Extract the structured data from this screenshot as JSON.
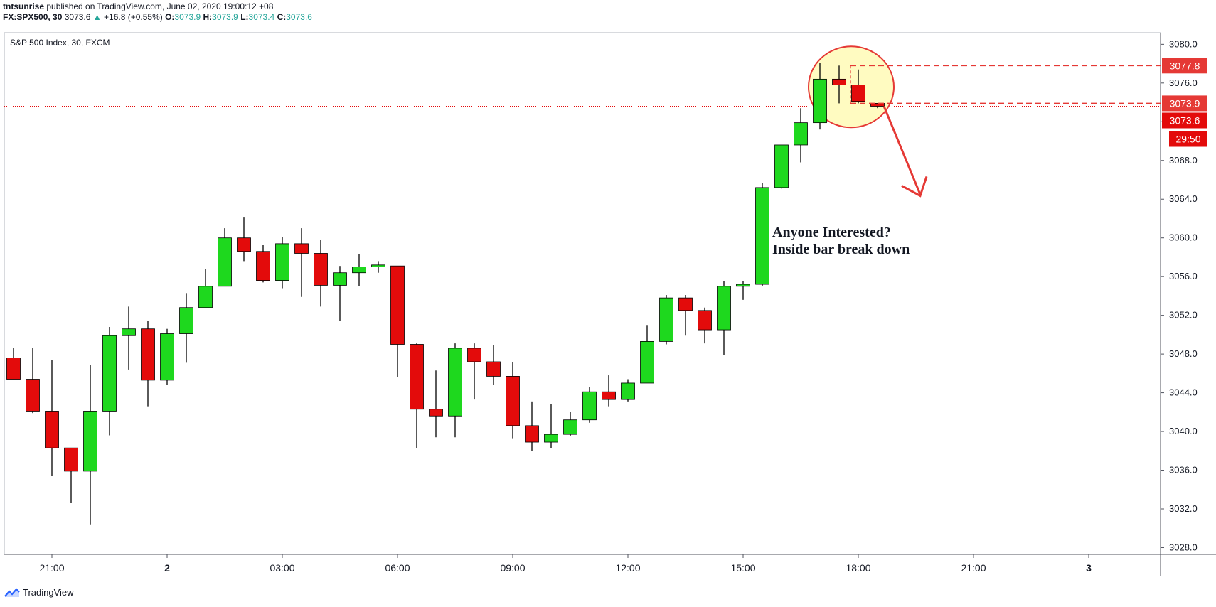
{
  "header": {
    "author": "tntsunrise",
    "published": " published on TradingView.com, June 02, 2020 19:00:12 +08",
    "symbol": "FX:SPX500, 30",
    "last": "3073.6",
    "change_arrow": "▲",
    "change": "+16.8 (+0.55%)",
    "o_label": "O:",
    "o": "3073.9",
    "h_label": "H:",
    "h": "3073.9",
    "l_label": "L:",
    "l": "3073.4",
    "c_label": "C:",
    "c": "3073.6"
  },
  "footer": {
    "brand": "TradingView"
  },
  "colors": {
    "up": "#1ed81e",
    "down": "#e30b0b",
    "accent": "#e53935",
    "highlight": "#fffbc1"
  },
  "chart_data": {
    "type": "candlestick",
    "title": "S&P 500 Index, 30, FXCM",
    "ylim": [
      3027.3,
      3081.2
    ],
    "yticks": [
      3028,
      3032,
      3036,
      3040,
      3044,
      3048,
      3052,
      3056,
      3060,
      3064,
      3068,
      3072,
      3076,
      3080
    ],
    "xticks": [
      {
        "label": "21:00",
        "bar": 2
      },
      {
        "label": "2",
        "bar": 8
      },
      {
        "label": "03:00",
        "bar": 14
      },
      {
        "label": "06:00",
        "bar": 20
      },
      {
        "label": "09:00",
        "bar": 26
      },
      {
        "label": "12:00",
        "bar": 32
      },
      {
        "label": "15:00",
        "bar": 38
      },
      {
        "label": "18:00",
        "bar": 44
      },
      {
        "label": "21:00",
        "bar": 50
      },
      {
        "label": "3",
        "bar": 56
      }
    ],
    "candles": [
      {
        "o": 3047.6,
        "h": 3048.6,
        "l": 3045.4,
        "c": 3045.4
      },
      {
        "o": 3045.4,
        "h": 3048.6,
        "l": 3041.9,
        "c": 3042.1
      },
      {
        "o": 3042.1,
        "h": 3047.4,
        "l": 3035.4,
        "c": 3038.3
      },
      {
        "o": 3038.3,
        "h": 3038.3,
        "l": 3032.6,
        "c": 3035.9
      },
      {
        "o": 3035.9,
        "h": 3046.9,
        "l": 3030.4,
        "c": 3042.1
      },
      {
        "o": 3042.1,
        "h": 3050.8,
        "l": 3039.6,
        "c": 3049.9
      },
      {
        "o": 3049.9,
        "h": 3052.9,
        "l": 3046.4,
        "c": 3050.6
      },
      {
        "o": 3050.6,
        "h": 3051.4,
        "l": 3042.6,
        "c": 3045.3
      },
      {
        "o": 3045.3,
        "h": 3050.6,
        "l": 3044.8,
        "c": 3050.1
      },
      {
        "o": 3050.1,
        "h": 3054.3,
        "l": 3047.1,
        "c": 3052.8
      },
      {
        "o": 3052.8,
        "h": 3056.8,
        "l": 3052.8,
        "c": 3055.0
      },
      {
        "o": 3055.0,
        "h": 3061.0,
        "l": 3055.0,
        "c": 3060.0
      },
      {
        "o": 3060.0,
        "h": 3062.1,
        "l": 3057.6,
        "c": 3058.6
      },
      {
        "o": 3058.6,
        "h": 3059.3,
        "l": 3055.4,
        "c": 3055.6
      },
      {
        "o": 3055.6,
        "h": 3060.1,
        "l": 3054.8,
        "c": 3059.4
      },
      {
        "o": 3059.4,
        "h": 3061.0,
        "l": 3053.9,
        "c": 3058.4
      },
      {
        "o": 3058.4,
        "h": 3059.8,
        "l": 3052.9,
        "c": 3055.1
      },
      {
        "o": 3055.1,
        "h": 3057.1,
        "l": 3051.4,
        "c": 3056.4
      },
      {
        "o": 3056.4,
        "h": 3058.3,
        "l": 3055.0,
        "c": 3057.0
      },
      {
        "o": 3057.0,
        "h": 3057.6,
        "l": 3056.4,
        "c": 3057.2
      },
      {
        "o": 3057.1,
        "h": 3057.1,
        "l": 3045.6,
        "c": 3049.0
      },
      {
        "o": 3049.0,
        "h": 3049.1,
        "l": 3038.3,
        "c": 3042.3
      },
      {
        "o": 3042.3,
        "h": 3046.3,
        "l": 3039.4,
        "c": 3041.6
      },
      {
        "o": 3041.6,
        "h": 3049.1,
        "l": 3039.4,
        "c": 3048.6
      },
      {
        "o": 3048.6,
        "h": 3049.1,
        "l": 3043.3,
        "c": 3047.2
      },
      {
        "o": 3047.2,
        "h": 3048.9,
        "l": 3044.8,
        "c": 3045.7
      },
      {
        "o": 3045.7,
        "h": 3047.2,
        "l": 3039.3,
        "c": 3040.6
      },
      {
        "o": 3040.6,
        "h": 3043.1,
        "l": 3038.0,
        "c": 3038.9
      },
      {
        "o": 3038.9,
        "h": 3042.8,
        "l": 3038.3,
        "c": 3039.7
      },
      {
        "o": 3039.7,
        "h": 3042.0,
        "l": 3039.5,
        "c": 3041.2
      },
      {
        "o": 3041.2,
        "h": 3044.6,
        "l": 3040.9,
        "c": 3044.1
      },
      {
        "o": 3044.1,
        "h": 3045.8,
        "l": 3042.6,
        "c": 3043.3
      },
      {
        "o": 3043.3,
        "h": 3045.4,
        "l": 3043.1,
        "c": 3045.0
      },
      {
        "o": 3045.0,
        "h": 3051.0,
        "l": 3045.0,
        "c": 3049.3
      },
      {
        "o": 3049.3,
        "h": 3054.1,
        "l": 3049.0,
        "c": 3053.8
      },
      {
        "o": 3053.8,
        "h": 3054.1,
        "l": 3049.9,
        "c": 3052.5
      },
      {
        "o": 3052.5,
        "h": 3052.8,
        "l": 3049.1,
        "c": 3050.5
      },
      {
        "o": 3050.5,
        "h": 3055.5,
        "l": 3047.9,
        "c": 3055.0
      },
      {
        "o": 3055.0,
        "h": 3055.5,
        "l": 3053.6,
        "c": 3055.2
      },
      {
        "o": 3055.2,
        "h": 3065.7,
        "l": 3055.0,
        "c": 3065.2
      },
      {
        "o": 3065.2,
        "h": 3069.6,
        "l": 3065.1,
        "c": 3069.6
      },
      {
        "o": 3069.6,
        "h": 3073.4,
        "l": 3067.8,
        "c": 3071.9
      },
      {
        "o": 3071.9,
        "h": 3078.1,
        "l": 3071.2,
        "c": 3076.4
      },
      {
        "o": 3076.4,
        "h": 3077.8,
        "l": 3073.9,
        "c": 3075.8
      },
      {
        "o": 3075.8,
        "h": 3077.4,
        "l": 3073.9,
        "c": 3074.1
      },
      {
        "o": 3073.9,
        "h": 3073.9,
        "l": 3073.4,
        "c": 3073.6
      }
    ],
    "price_labels": [
      {
        "value": 3077.8,
        "text": "3077.8"
      },
      {
        "value": 3073.9,
        "text": "3073.9"
      },
      {
        "value": 3073.6,
        "text": "3073.6"
      }
    ],
    "countdown": "29:50",
    "annotation": [
      "Anyone Interested?",
      "Inside bar break down"
    ],
    "grid": false
  }
}
